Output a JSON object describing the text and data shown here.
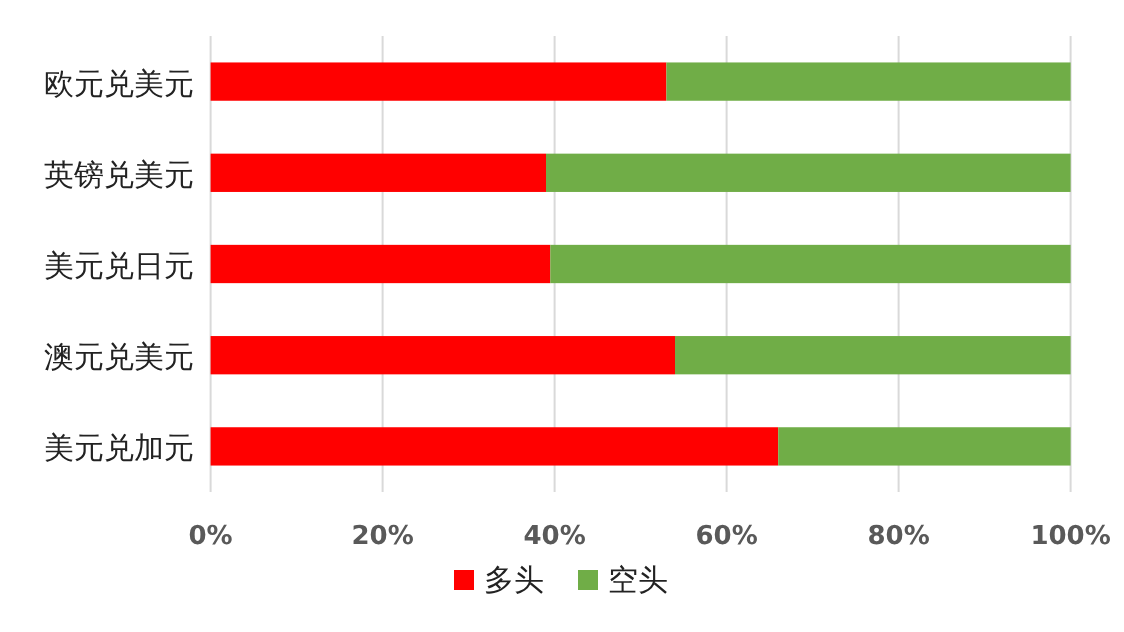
{
  "chart_data": {
    "type": "bar",
    "orientation": "horizontal",
    "stacked": true,
    "categories": [
      "欧元兑美元",
      "英镑兑美元",
      "美元兑日元",
      "澳元兑美元",
      "美元兑加元"
    ],
    "series": [
      {
        "name": "多头",
        "color": "#ff0000",
        "values": [
          53,
          39,
          39.5,
          54,
          66
        ]
      },
      {
        "name": "空头",
        "color": "#70ad47",
        "values": [
          47,
          61,
          60.5,
          46,
          34
        ]
      }
    ],
    "xlim": [
      0,
      100
    ],
    "xticks": [
      {
        "value": 0,
        "label": "0%"
      },
      {
        "value": 20,
        "label": "20%"
      },
      {
        "value": 40,
        "label": "40%"
      },
      {
        "value": 60,
        "label": "60%"
      },
      {
        "value": 80,
        "label": "80%"
      },
      {
        "value": 100,
        "label": "100%"
      }
    ],
    "grid": "x",
    "legend": "bottom"
  }
}
